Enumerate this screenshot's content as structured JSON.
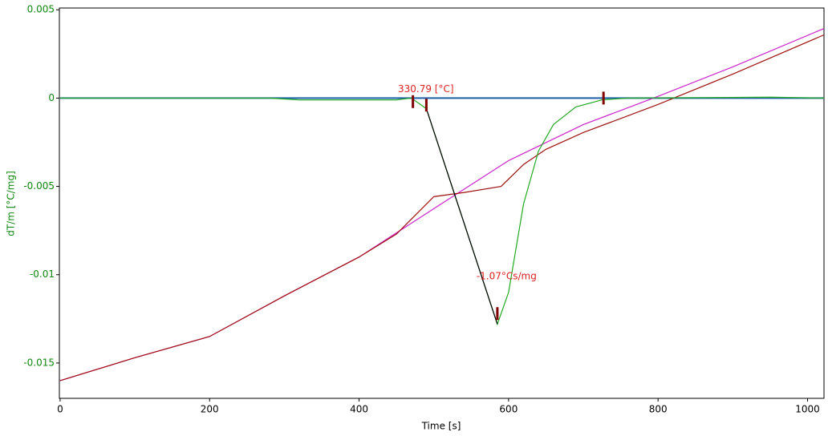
{
  "chart_data": {
    "type": "line",
    "xlabel": "Time [s]",
    "ylabel": "dT/m  [°C/mg]",
    "xlim": [
      -1,
      1022
    ],
    "xticks": [
      0,
      200,
      400,
      600,
      800,
      1000
    ],
    "ylim": [
      -0.017,
      0.0051
    ],
    "yticks": [
      0.005,
      0,
      -0.005,
      -0.01,
      -0.015
    ],
    "grid": false,
    "series": [
      {
        "color": "#1a5fa8",
        "x": [
          0,
          1022
        ],
        "values": [
          0,
          0
        ]
      },
      {
        "color": "#cc22cc",
        "x": [
          0,
          100,
          200,
          300,
          400,
          500,
          600,
          700,
          800,
          900,
          1022
        ],
        "values": [
          -0.016,
          -0.0147,
          -0.0135,
          -0.0112,
          -0.009,
          -0.00626,
          -0.00354,
          -0.0015,
          0.0001,
          0.00177,
          0.00394
        ]
      },
      {
        "color": "#a01010",
        "x": [
          0,
          100,
          200,
          300,
          400,
          450,
          500,
          540,
          590,
          620,
          650,
          700,
          800,
          900,
          1022
        ],
        "values": [
          -0.016,
          -0.0147,
          -0.0135,
          -0.0112,
          -0.009,
          -0.0077,
          -0.00558,
          -0.00535,
          -0.005,
          -0.00376,
          -0.0029,
          -0.00195,
          -0.00036,
          0.00136,
          0.00358
        ]
      },
      {
        "color": "#22aa22",
        "x": [
          0,
          280,
          320,
          450,
          470,
          490,
          585,
          600,
          620,
          640,
          660,
          690,
          725,
          760,
          950,
          1022
        ],
        "values": [
          0,
          0,
          -0.0001,
          -0.0001,
          0,
          -0.0006,
          -0.0128,
          -0.011,
          -0.006,
          -0.003,
          -0.0015,
          -0.0005,
          -0.0001,
          0,
          5e-05,
          0
        ]
      },
      {
        "color": "#000000",
        "x": [
          490,
          585
        ],
        "values": [
          -0.0006,
          -0.0128
        ]
      }
    ],
    "markers": {
      "color": "#800000",
      "x": [
        472,
        490,
        585,
        727
      ],
      "values": [
        -0.0002,
        -0.0004,
        -0.0122,
        0
      ]
    },
    "annotations": [
      {
        "text": "330.79 [°C]",
        "x": 452,
        "y": 0.0005
      },
      {
        "text": "-1.07°Cs/mg",
        "x": 557,
        "y": -0.0101
      }
    ]
  }
}
